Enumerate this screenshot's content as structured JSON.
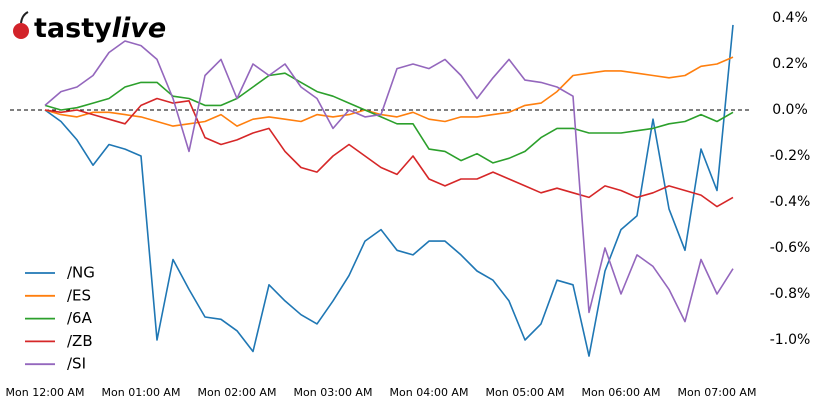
{
  "chart_data": {
    "type": "line",
    "logo": [
      "tasty",
      "live"
    ],
    "x": [
      0,
      10,
      20,
      30,
      40,
      50,
      60,
      70,
      80,
      90,
      100,
      110,
      120,
      130,
      140,
      150,
      160,
      170,
      180,
      190,
      200,
      210,
      220,
      230,
      240,
      250,
      260,
      270,
      280,
      290,
      300,
      310,
      320,
      330,
      340,
      350,
      360,
      370,
      380,
      390,
      400,
      410,
      420,
      430
    ],
    "xlim": [
      -20,
      440
    ],
    "xticks": [
      {
        "value": 0,
        "label": "Mon 12:00 AM"
      },
      {
        "value": 60,
        "label": "Mon 01:00 AM"
      },
      {
        "value": 120,
        "label": "Mon 02:00 AM"
      },
      {
        "value": 180,
        "label": "Mon 03:00 AM"
      },
      {
        "value": 240,
        "label": "Mon 04:00 AM"
      },
      {
        "value": 300,
        "label": "Mon 05:00 AM"
      },
      {
        "value": 360,
        "label": "Mon 06:00 AM"
      },
      {
        "value": 420,
        "label": "Mon 07:00 AM"
      }
    ],
    "ylim": [
      -1.15,
      0.45
    ],
    "yticks": [
      {
        "value": 0.4,
        "label": "0.4%"
      },
      {
        "value": 0.2,
        "label": "0.2%"
      },
      {
        "value": 0,
        "label": "0.0%"
      },
      {
        "value": -0.2,
        "label": "-0.2%"
      },
      {
        "value": -0.4,
        "label": "-0.4%"
      },
      {
        "value": -0.6,
        "label": "-0.6%"
      },
      {
        "value": -0.8,
        "label": "-0.8%"
      },
      {
        "value": -1.0,
        "label": "-1.0%"
      }
    ],
    "zero_line": true,
    "legend": "lower left",
    "series": [
      {
        "name": "/NG",
        "color": "#1f77b4",
        "values": [
          0,
          -0.05,
          -0.13,
          -0.24,
          -0.15,
          -0.17,
          -0.2,
          -1.0,
          -0.65,
          -0.78,
          -0.9,
          -0.91,
          -0.96,
          -1.05,
          -0.76,
          -0.83,
          -0.89,
          -0.93,
          -0.83,
          -0.72,
          -0.57,
          -0.52,
          -0.61,
          -0.63,
          -0.57,
          -0.57,
          -0.63,
          -0.7,
          -0.74,
          -0.83,
          -1.0,
          -0.93,
          -0.74,
          -0.76,
          -1.07,
          -0.7,
          -0.52,
          -0.46,
          -0.04,
          -0.43,
          -0.61,
          -0.17,
          -0.35,
          0.37
        ]
      },
      {
        "name": "/ES",
        "color": "#ff7f0e",
        "values": [
          0,
          -0.02,
          -0.03,
          -0.01,
          -0.01,
          -0.02,
          -0.03,
          -0.05,
          -0.07,
          -0.06,
          -0.05,
          -0.02,
          -0.07,
          -0.04,
          -0.03,
          -0.04,
          -0.05,
          -0.02,
          -0.03,
          -0.02,
          0,
          -0.02,
          -0.03,
          -0.01,
          -0.04,
          -0.05,
          -0.03,
          -0.03,
          -0.02,
          -0.01,
          0.02,
          0.03,
          0.08,
          0.15,
          0.16,
          0.17,
          0.17,
          0.16,
          0.15,
          0.14,
          0.15,
          0.19,
          0.2,
          0.23
        ]
      },
      {
        "name": "/6A",
        "color": "#2ca02c",
        "values": [
          0.02,
          0,
          0.01,
          0.03,
          0.05,
          0.1,
          0.12,
          0.12,
          0.06,
          0.05,
          0.02,
          0.02,
          0.05,
          0.1,
          0.15,
          0.16,
          0.12,
          0.08,
          0.06,
          0.03,
          0,
          -0.03,
          -0.06,
          -0.06,
          -0.17,
          -0.18,
          -0.22,
          -0.19,
          -0.23,
          -0.21,
          -0.18,
          -0.12,
          -0.08,
          -0.08,
          -0.1,
          -0.1,
          -0.1,
          -0.09,
          -0.08,
          -0.06,
          -0.05,
          -0.02,
          -0.05,
          -0.01
        ]
      },
      {
        "name": "/ZB",
        "color": "#d62728",
        "values": [
          0,
          -0.01,
          0,
          -0.02,
          -0.04,
          -0.06,
          0.02,
          0.05,
          0.03,
          0.04,
          -0.12,
          -0.15,
          -0.13,
          -0.1,
          -0.08,
          -0.18,
          -0.25,
          -0.27,
          -0.2,
          -0.15,
          -0.2,
          -0.25,
          -0.28,
          -0.2,
          -0.3,
          -0.33,
          -0.3,
          -0.3,
          -0.27,
          -0.3,
          -0.33,
          -0.36,
          -0.34,
          -0.36,
          -0.38,
          -0.33,
          -0.35,
          -0.38,
          -0.36,
          -0.33,
          -0.35,
          -0.37,
          -0.42,
          -0.38
        ]
      },
      {
        "name": "/SI",
        "color": "#9467bd",
        "values": [
          0.02,
          0.08,
          0.1,
          0.15,
          0.25,
          0.3,
          0.28,
          0.22,
          0.05,
          -0.18,
          0.15,
          0.22,
          0.05,
          0.2,
          0.15,
          0.2,
          0.1,
          0.05,
          -0.08,
          0,
          -0.03,
          -0.02,
          0.18,
          0.2,
          0.18,
          0.22,
          0.15,
          0.05,
          0.14,
          0.22,
          0.13,
          0.12,
          0.1,
          0.06,
          -0.88,
          -0.6,
          -0.8,
          -0.63,
          -0.68,
          -0.78,
          -0.92,
          -0.65,
          -0.8,
          -0.69
        ]
      }
    ]
  }
}
